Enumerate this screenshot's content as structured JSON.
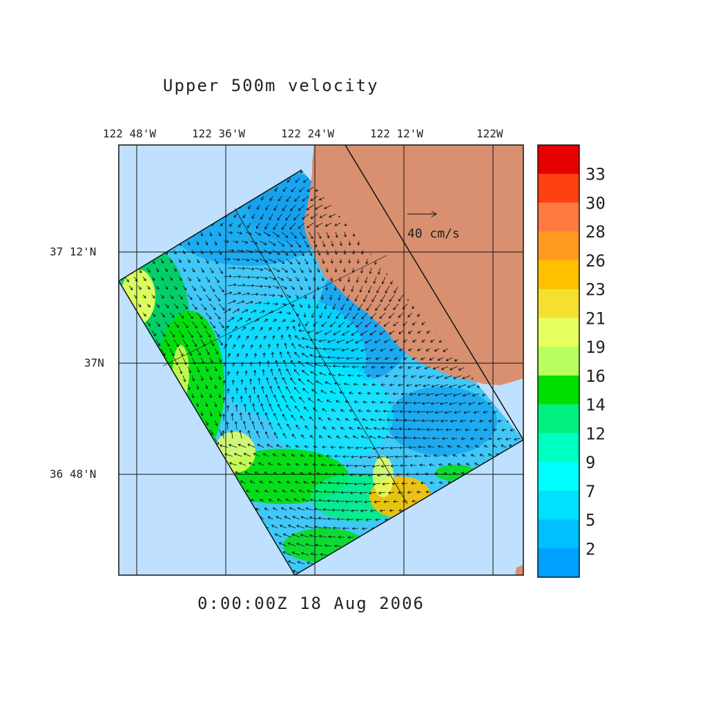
{
  "title": "Upper 500m velocity",
  "timestamp": "0:00:00Z  18 Aug 2006",
  "lon_labels": [
    "122 48'W",
    "122 36'W",
    "122 24'W",
    "122 12'W",
    "122W"
  ],
  "lat_labels": [
    "37 12'N",
    "37N",
    "36 48'N"
  ],
  "reference_vector": {
    "label": "40 cm/s",
    "value": 40
  },
  "colorbar": {
    "labels": [
      "33",
      "30",
      "28",
      "26",
      "23",
      "21",
      "19",
      "16",
      "14",
      "12",
      "9",
      "7",
      "5",
      "2"
    ],
    "colors": [
      "#e60000",
      "#ff4010",
      "#ff7a40",
      "#ff9a20",
      "#ffc000",
      "#f5e030",
      "#e8ff60",
      "#b8ff60",
      "#00e000",
      "#00f080",
      "#00ffc0",
      "#00ffff",
      "#00e0ff",
      "#00c0ff",
      "#00a0ff"
    ]
  },
  "colors": {
    "ocean_outside": "#c0e0ff",
    "land": "#d89070",
    "model_base": "#40c8f8"
  }
}
